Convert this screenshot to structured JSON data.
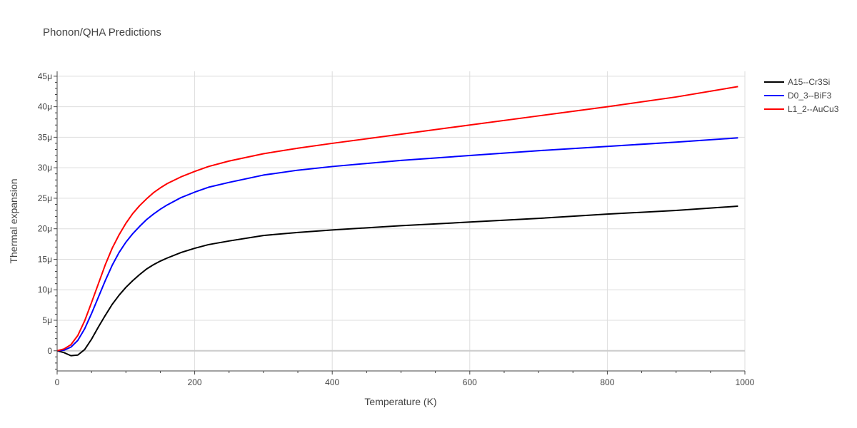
{
  "chart_data": {
    "type": "line",
    "title": "Phonon/QHA Predictions",
    "xlabel": "Temperature (K)",
    "ylabel": "Thermal expansion",
    "xlim": [
      0,
      1000
    ],
    "ylim": [
      -3.3e-06,
      4.58e-05
    ],
    "x_ticks": [
      0,
      200,
      400,
      600,
      800,
      1000
    ],
    "x_tick_labels": [
      "0",
      "200",
      "400",
      "600",
      "800",
      "1000"
    ],
    "y_ticks": [
      0,
      5e-06,
      1e-05,
      1.5e-05,
      2e-05,
      2.5e-05,
      3e-05,
      3.5e-05,
      4e-05,
      4.5e-05
    ],
    "y_tick_labels": [
      "0",
      "5μ",
      "10μ",
      "15μ",
      "20μ",
      "25μ",
      "30μ",
      "35μ",
      "40μ",
      "45μ"
    ],
    "grid": true,
    "legend_position": "top-right",
    "series": [
      {
        "name": "A15--Cr3Si",
        "color": "#000000",
        "x": [
          0,
          10,
          20,
          30,
          40,
          50,
          60,
          70,
          80,
          90,
          100,
          110,
          120,
          130,
          140,
          150,
          160,
          180,
          200,
          220,
          250,
          300,
          350,
          400,
          500,
          600,
          700,
          800,
          900,
          990
        ],
        "y": [
          0,
          -3e-07,
          -8e-07,
          -7e-07,
          2e-07,
          1.9e-06,
          3.9e-06,
          5.8e-06,
          7.6e-06,
          9.1e-06,
          1.04e-05,
          1.15e-05,
          1.25e-05,
          1.34e-05,
          1.41e-05,
          1.47e-05,
          1.52e-05,
          1.61e-05,
          1.68e-05,
          1.74e-05,
          1.8e-05,
          1.89e-05,
          1.94e-05,
          1.98e-05,
          2.05e-05,
          2.11e-05,
          2.17e-05,
          2.24e-05,
          2.3e-05,
          2.37e-05
        ]
      },
      {
        "name": "D0_3--BiF3",
        "color": "#0000ff",
        "x": [
          0,
          10,
          20,
          30,
          40,
          50,
          60,
          70,
          80,
          90,
          100,
          110,
          120,
          130,
          140,
          150,
          160,
          180,
          200,
          220,
          250,
          300,
          350,
          400,
          500,
          600,
          700,
          800,
          900,
          990
        ],
        "y": [
          0,
          1e-07,
          6e-07,
          1.7e-06,
          3.6e-06,
          6.1e-06,
          8.8e-06,
          1.15e-05,
          1.4e-05,
          1.61e-05,
          1.78e-05,
          1.92e-05,
          2.04e-05,
          2.15e-05,
          2.24e-05,
          2.32e-05,
          2.39e-05,
          2.51e-05,
          2.6e-05,
          2.68e-05,
          2.76e-05,
          2.88e-05,
          2.96e-05,
          3.02e-05,
          3.12e-05,
          3.2e-05,
          3.28e-05,
          3.35e-05,
          3.42e-05,
          3.49e-05
        ]
      },
      {
        "name": "L1_2--AuCu3",
        "color": "#ff0000",
        "x": [
          0,
          10,
          20,
          30,
          40,
          50,
          60,
          70,
          80,
          90,
          100,
          110,
          120,
          130,
          140,
          150,
          160,
          180,
          200,
          220,
          250,
          300,
          350,
          400,
          500,
          600,
          700,
          800,
          900,
          990
        ],
        "y": [
          0,
          3e-07,
          1e-06,
          2.5e-06,
          4.9e-06,
          7.9e-06,
          1.1e-05,
          1.41e-05,
          1.68e-05,
          1.9e-05,
          2.09e-05,
          2.25e-05,
          2.38e-05,
          2.49e-05,
          2.59e-05,
          2.67e-05,
          2.74e-05,
          2.85e-05,
          2.94e-05,
          3.02e-05,
          3.11e-05,
          3.23e-05,
          3.32e-05,
          3.4e-05,
          3.55e-05,
          3.7e-05,
          3.85e-05,
          4e-05,
          4.16e-05,
          4.33e-05
        ]
      }
    ]
  }
}
